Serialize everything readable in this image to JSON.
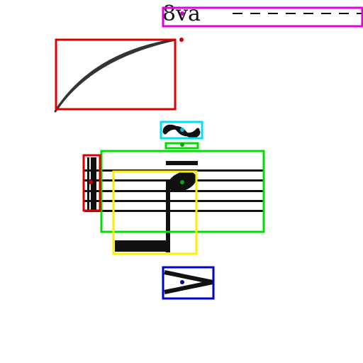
{
  "score": {
    "ottava": {
      "label": "8va",
      "dashed_extension": true
    },
    "staff_lines": 5,
    "note": {
      "duration": "half",
      "stem_direction": "down"
    }
  },
  "annotations": [
    {
      "label": "ottava-bracket",
      "color": "#e000e0"
    },
    {
      "label": "slur",
      "color": "#dd0000"
    },
    {
      "label": "turn",
      "color": "#00e0f0"
    },
    {
      "label": "ledger-line",
      "color": "#00dd00"
    },
    {
      "label": "staff",
      "color": "#00dd00"
    },
    {
      "label": "barline",
      "color": "#dd0000"
    },
    {
      "label": "note",
      "color": "#ffee00"
    },
    {
      "label": "accent",
      "color": "#0000cc"
    }
  ]
}
